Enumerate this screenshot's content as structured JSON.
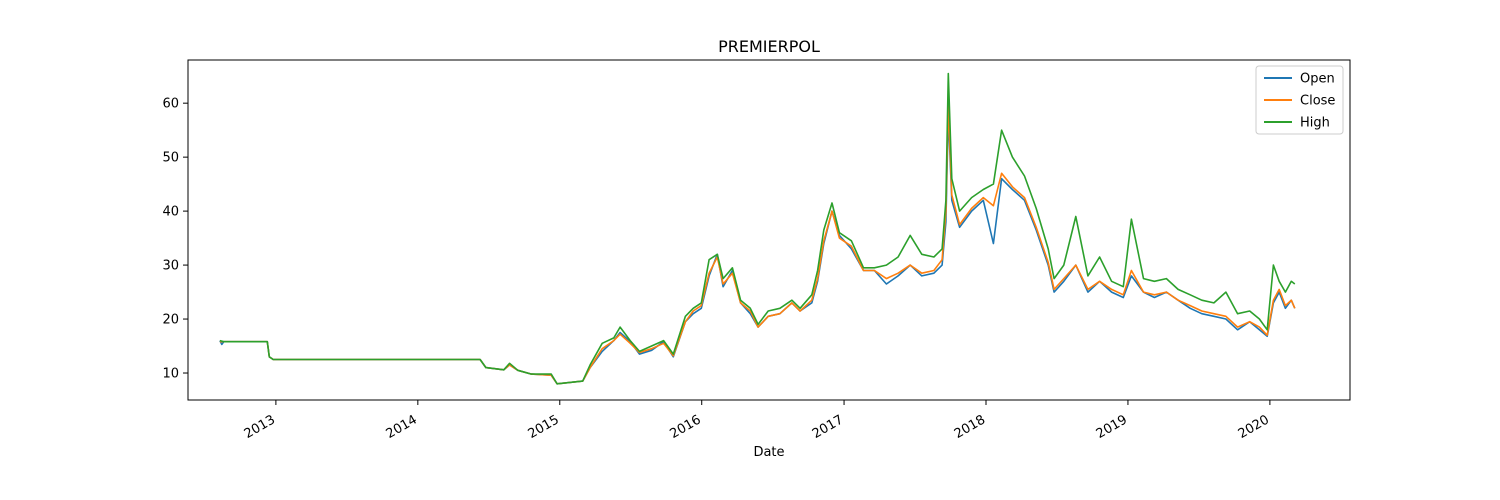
{
  "chart_data": {
    "type": "line",
    "title": "PREMIERPOL",
    "xlabel": "Date",
    "ylabel": "",
    "xlim": [
      "2012-05-20",
      "2020-07-25"
    ],
    "ylim": [
      5,
      68
    ],
    "x_ticks": [
      "2013",
      "2014",
      "2015",
      "2016",
      "2017",
      "2018",
      "2019",
      "2020"
    ],
    "y_ticks": [
      10,
      20,
      30,
      40,
      50,
      60
    ],
    "legend_position": "top-right",
    "grid": false,
    "series": [
      {
        "name": "Open",
        "color": "#1f77b4",
        "points": [
          [
            "2012-08-10",
            16.0
          ],
          [
            "2012-08-15",
            15.3
          ],
          [
            "2012-08-20",
            15.8
          ],
          [
            "2012-12-10",
            15.8
          ],
          [
            "2012-12-15",
            13.0
          ],
          [
            "2012-12-25",
            12.5
          ],
          [
            "2014-06-10",
            12.5
          ],
          [
            "2014-06-25",
            11.0
          ],
          [
            "2014-08-10",
            10.6
          ],
          [
            "2014-08-25",
            11.5
          ],
          [
            "2014-09-15",
            10.5
          ],
          [
            "2014-10-20",
            9.8
          ],
          [
            "2014-12-10",
            9.6
          ],
          [
            "2014-12-25",
            8.0
          ],
          [
            "2015-03-01",
            8.5
          ],
          [
            "2015-03-20",
            11.0
          ],
          [
            "2015-04-20",
            14.0
          ],
          [
            "2015-05-20",
            16.0
          ],
          [
            "2015-06-05",
            17.5
          ],
          [
            "2015-07-01",
            15.8
          ],
          [
            "2015-07-25",
            13.5
          ],
          [
            "2015-08-25",
            14.2
          ],
          [
            "2015-09-25",
            15.8
          ],
          [
            "2015-10-20",
            13.0
          ],
          [
            "2015-11-20",
            19.5
          ],
          [
            "2015-12-10",
            21.0
          ],
          [
            "2015-12-31",
            22.0
          ],
          [
            "2016-01-20",
            28.0
          ],
          [
            "2016-02-10",
            32.0
          ],
          [
            "2016-02-25",
            26.0
          ],
          [
            "2016-03-20",
            29.0
          ],
          [
            "2016-04-10",
            23.0
          ],
          [
            "2016-05-05",
            21.0
          ],
          [
            "2016-05-25",
            18.5
          ],
          [
            "2016-06-20",
            20.5
          ],
          [
            "2016-07-20",
            21.0
          ],
          [
            "2016-08-20",
            23.0
          ],
          [
            "2016-09-10",
            21.5
          ],
          [
            "2016-10-10",
            23.0
          ],
          [
            "2016-10-25",
            27.0
          ],
          [
            "2016-11-10",
            34.0
          ],
          [
            "2016-12-01",
            40.0
          ],
          [
            "2016-12-20",
            35.5
          ],
          [
            "2017-01-20",
            33.0
          ],
          [
            "2017-02-20",
            29.0
          ],
          [
            "2017-03-20",
            29.0
          ],
          [
            "2017-04-20",
            26.5
          ],
          [
            "2017-05-20",
            28.0
          ],
          [
            "2017-06-20",
            30.0
          ],
          [
            "2017-07-20",
            28.0
          ],
          [
            "2017-08-20",
            28.5
          ],
          [
            "2017-09-10",
            30.0
          ],
          [
            "2017-09-20",
            38.0
          ],
          [
            "2017-09-26",
            58.0
          ],
          [
            "2017-10-05",
            42.0
          ],
          [
            "2017-10-25",
            37.0
          ],
          [
            "2017-11-25",
            40.0
          ],
          [
            "2017-12-25",
            42.0
          ],
          [
            "2018-01-20",
            34.0
          ],
          [
            "2018-02-10",
            46.0
          ],
          [
            "2018-03-10",
            44.0
          ],
          [
            "2018-04-10",
            42.0
          ],
          [
            "2018-05-10",
            36.5
          ],
          [
            "2018-06-10",
            30.0
          ],
          [
            "2018-06-25",
            25.0
          ],
          [
            "2018-07-20",
            27.0
          ],
          [
            "2018-08-20",
            30.0
          ],
          [
            "2018-09-20",
            25.0
          ],
          [
            "2018-10-20",
            27.0
          ],
          [
            "2018-11-20",
            25.0
          ],
          [
            "2018-12-20",
            24.0
          ],
          [
            "2019-01-10",
            28.0
          ],
          [
            "2019-02-10",
            25.0
          ],
          [
            "2019-03-10",
            24.0
          ],
          [
            "2019-04-10",
            25.0
          ],
          [
            "2019-05-10",
            23.5
          ],
          [
            "2019-06-10",
            22.0
          ],
          [
            "2019-07-10",
            21.0
          ],
          [
            "2019-08-10",
            20.5
          ],
          [
            "2019-09-10",
            20.0
          ],
          [
            "2019-10-10",
            18.0
          ],
          [
            "2019-11-10",
            19.5
          ],
          [
            "2019-12-05",
            18.0
          ],
          [
            "2019-12-25",
            16.8
          ],
          [
            "2020-01-10",
            23.0
          ],
          [
            "2020-01-25",
            25.0
          ],
          [
            "2020-02-10",
            22.0
          ],
          [
            "2020-02-25",
            23.5
          ],
          [
            "2020-03-05",
            22.0
          ]
        ]
      },
      {
        "name": "Close",
        "color": "#ff7f0e",
        "points": [
          [
            "2012-08-10",
            15.8
          ],
          [
            "2012-08-20",
            15.8
          ],
          [
            "2012-12-10",
            15.8
          ],
          [
            "2012-12-15",
            13.0
          ],
          [
            "2012-12-25",
            12.5
          ],
          [
            "2014-06-10",
            12.5
          ],
          [
            "2014-06-25",
            11.0
          ],
          [
            "2014-08-10",
            10.6
          ],
          [
            "2014-08-25",
            11.5
          ],
          [
            "2014-09-15",
            10.5
          ],
          [
            "2014-10-20",
            9.8
          ],
          [
            "2014-12-10",
            9.6
          ],
          [
            "2014-12-25",
            8.0
          ],
          [
            "2015-03-01",
            8.5
          ],
          [
            "2015-03-20",
            11.0
          ],
          [
            "2015-04-20",
            14.5
          ],
          [
            "2015-05-20",
            16.0
          ],
          [
            "2015-06-05",
            17.2
          ],
          [
            "2015-07-01",
            15.5
          ],
          [
            "2015-07-25",
            13.8
          ],
          [
            "2015-08-25",
            14.5
          ],
          [
            "2015-09-25",
            15.5
          ],
          [
            "2015-10-20",
            13.2
          ],
          [
            "2015-11-20",
            19.5
          ],
          [
            "2015-12-10",
            21.5
          ],
          [
            "2015-12-31",
            22.5
          ],
          [
            "2016-01-20",
            28.5
          ],
          [
            "2016-02-10",
            31.5
          ],
          [
            "2016-02-25",
            26.5
          ],
          [
            "2016-03-20",
            28.5
          ],
          [
            "2016-04-10",
            23.0
          ],
          [
            "2016-05-05",
            21.5
          ],
          [
            "2016-05-25",
            18.5
          ],
          [
            "2016-06-20",
            20.5
          ],
          [
            "2016-07-20",
            21.0
          ],
          [
            "2016-08-20",
            23.0
          ],
          [
            "2016-09-10",
            21.5
          ],
          [
            "2016-10-10",
            23.5
          ],
          [
            "2016-10-25",
            27.5
          ],
          [
            "2016-11-10",
            34.5
          ],
          [
            "2016-12-01",
            40.0
          ],
          [
            "2016-12-20",
            35.0
          ],
          [
            "2017-01-20",
            33.5
          ],
          [
            "2017-02-20",
            29.0
          ],
          [
            "2017-03-20",
            29.0
          ],
          [
            "2017-04-20",
            27.5
          ],
          [
            "2017-05-20",
            28.5
          ],
          [
            "2017-06-20",
            30.0
          ],
          [
            "2017-07-20",
            28.5
          ],
          [
            "2017-08-20",
            29.0
          ],
          [
            "2017-09-10",
            31.0
          ],
          [
            "2017-09-20",
            40.0
          ],
          [
            "2017-09-26",
            60.0
          ],
          [
            "2017-10-05",
            43.0
          ],
          [
            "2017-10-25",
            37.5
          ],
          [
            "2017-11-25",
            40.5
          ],
          [
            "2017-12-25",
            42.5
          ],
          [
            "2018-01-20",
            41.0
          ],
          [
            "2018-02-10",
            47.0
          ],
          [
            "2018-03-10",
            44.5
          ],
          [
            "2018-04-10",
            42.5
          ],
          [
            "2018-05-10",
            37.0
          ],
          [
            "2018-06-10",
            30.5
          ],
          [
            "2018-06-25",
            25.5
          ],
          [
            "2018-07-20",
            27.5
          ],
          [
            "2018-08-20",
            30.0
          ],
          [
            "2018-09-20",
            25.5
          ],
          [
            "2018-10-20",
            27.0
          ],
          [
            "2018-11-20",
            25.5
          ],
          [
            "2018-12-20",
            24.5
          ],
          [
            "2019-01-10",
            29.0
          ],
          [
            "2019-02-10",
            25.0
          ],
          [
            "2019-03-10",
            24.5
          ],
          [
            "2019-04-10",
            25.0
          ],
          [
            "2019-05-10",
            23.5
          ],
          [
            "2019-06-10",
            22.5
          ],
          [
            "2019-07-10",
            21.5
          ],
          [
            "2019-08-10",
            21.0
          ],
          [
            "2019-09-10",
            20.5
          ],
          [
            "2019-10-10",
            18.5
          ],
          [
            "2019-11-10",
            19.5
          ],
          [
            "2019-12-05",
            18.5
          ],
          [
            "2019-12-25",
            17.0
          ],
          [
            "2020-01-10",
            23.5
          ],
          [
            "2020-01-25",
            25.5
          ],
          [
            "2020-02-10",
            22.5
          ],
          [
            "2020-02-25",
            23.5
          ],
          [
            "2020-03-05",
            22.0
          ]
        ]
      },
      {
        "name": "High",
        "color": "#2ca02c",
        "points": [
          [
            "2012-08-10",
            16.0
          ],
          [
            "2012-08-20",
            15.8
          ],
          [
            "2012-12-10",
            15.8
          ],
          [
            "2012-12-15",
            13.0
          ],
          [
            "2012-12-25",
            12.5
          ],
          [
            "2014-06-10",
            12.5
          ],
          [
            "2014-06-25",
            11.0
          ],
          [
            "2014-08-10",
            10.6
          ],
          [
            "2014-08-25",
            11.8
          ],
          [
            "2014-09-15",
            10.5
          ],
          [
            "2014-10-20",
            9.8
          ],
          [
            "2014-12-10",
            9.8
          ],
          [
            "2014-12-25",
            8.0
          ],
          [
            "2015-03-01",
            8.5
          ],
          [
            "2015-03-20",
            11.5
          ],
          [
            "2015-04-20",
            15.5
          ],
          [
            "2015-05-20",
            16.5
          ],
          [
            "2015-06-05",
            18.5
          ],
          [
            "2015-07-01",
            16.0
          ],
          [
            "2015-07-25",
            14.0
          ],
          [
            "2015-08-25",
            15.0
          ],
          [
            "2015-09-25",
            16.0
          ],
          [
            "2015-10-20",
            13.5
          ],
          [
            "2015-11-20",
            20.5
          ],
          [
            "2015-12-10",
            22.0
          ],
          [
            "2015-12-31",
            23.0
          ],
          [
            "2016-01-20",
            31.0
          ],
          [
            "2016-02-10",
            32.0
          ],
          [
            "2016-02-25",
            27.5
          ],
          [
            "2016-03-20",
            29.5
          ],
          [
            "2016-04-10",
            23.5
          ],
          [
            "2016-05-05",
            22.0
          ],
          [
            "2016-05-25",
            19.0
          ],
          [
            "2016-06-20",
            21.5
          ],
          [
            "2016-07-20",
            22.0
          ],
          [
            "2016-08-20",
            23.5
          ],
          [
            "2016-09-10",
            22.0
          ],
          [
            "2016-10-10",
            24.5
          ],
          [
            "2016-10-25",
            29.0
          ],
          [
            "2016-11-10",
            36.5
          ],
          [
            "2016-12-01",
            41.5
          ],
          [
            "2016-12-20",
            36.0
          ],
          [
            "2017-01-20",
            34.5
          ],
          [
            "2017-02-20",
            29.5
          ],
          [
            "2017-03-20",
            29.5
          ],
          [
            "2017-04-20",
            30.0
          ],
          [
            "2017-05-20",
            31.5
          ],
          [
            "2017-06-20",
            35.5
          ],
          [
            "2017-07-20",
            32.0
          ],
          [
            "2017-08-20",
            31.5
          ],
          [
            "2017-09-10",
            33.0
          ],
          [
            "2017-09-20",
            42.0
          ],
          [
            "2017-09-26",
            65.5
          ],
          [
            "2017-10-05",
            46.0
          ],
          [
            "2017-10-25",
            40.0
          ],
          [
            "2017-11-25",
            42.5
          ],
          [
            "2017-12-25",
            44.0
          ],
          [
            "2018-01-20",
            45.0
          ],
          [
            "2018-02-10",
            55.0
          ],
          [
            "2018-03-10",
            50.0
          ],
          [
            "2018-04-10",
            46.5
          ],
          [
            "2018-05-10",
            40.5
          ],
          [
            "2018-06-10",
            33.0
          ],
          [
            "2018-06-25",
            27.5
          ],
          [
            "2018-07-20",
            30.0
          ],
          [
            "2018-08-20",
            39.0
          ],
          [
            "2018-09-20",
            28.0
          ],
          [
            "2018-10-20",
            31.5
          ],
          [
            "2018-11-20",
            27.0
          ],
          [
            "2018-12-20",
            26.0
          ],
          [
            "2019-01-10",
            38.5
          ],
          [
            "2019-02-10",
            27.5
          ],
          [
            "2019-03-10",
            27.0
          ],
          [
            "2019-04-10",
            27.5
          ],
          [
            "2019-05-10",
            25.5
          ],
          [
            "2019-06-10",
            24.5
          ],
          [
            "2019-07-10",
            23.5
          ],
          [
            "2019-08-10",
            23.0
          ],
          [
            "2019-09-10",
            25.0
          ],
          [
            "2019-10-10",
            21.0
          ],
          [
            "2019-11-10",
            21.5
          ],
          [
            "2019-12-05",
            20.0
          ],
          [
            "2019-12-25",
            18.0
          ],
          [
            "2020-01-10",
            30.0
          ],
          [
            "2020-01-25",
            27.0
          ],
          [
            "2020-02-10",
            25.0
          ],
          [
            "2020-02-25",
            27.0
          ],
          [
            "2020-03-05",
            26.5
          ]
        ]
      }
    ]
  }
}
